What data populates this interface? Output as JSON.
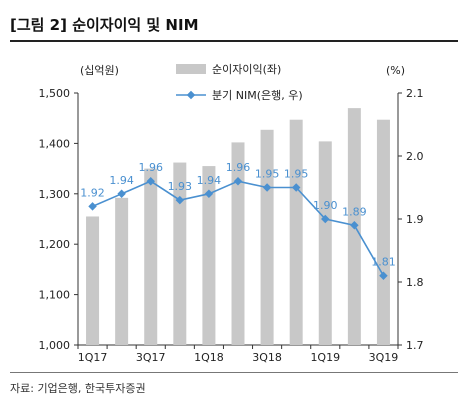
{
  "header": {
    "title": "[그림 2] 순이자이익 및 NIM"
  },
  "footer": {
    "source": "자료: 기업은행, 한국투자증권"
  },
  "chart_data": {
    "type": "bar+line",
    "left_axis_unit": "(십억원)",
    "right_axis_unit": "(%)",
    "categories": [
      "1Q17",
      "2Q17",
      "3Q17",
      "4Q17",
      "1Q18",
      "2Q18",
      "3Q18",
      "4Q18",
      "1Q19",
      "2Q19",
      "3Q19"
    ],
    "x_tick_labels": [
      "1Q17",
      "3Q17",
      "1Q18",
      "3Q18",
      "1Q19",
      "3Q19"
    ],
    "series": [
      {
        "name": "순이자이익(좌)",
        "type": "bar",
        "axis": "left",
        "color": "#c8c8c8",
        "values": [
          1255,
          1292,
          1350,
          1362,
          1355,
          1402,
          1427,
          1447,
          1404,
          1470,
          1447
        ]
      },
      {
        "name": "분기 NIM(은행, 우)",
        "type": "line",
        "axis": "right",
        "color": "#4a90d0",
        "values": [
          1.92,
          1.94,
          1.96,
          1.93,
          1.94,
          1.96,
          1.95,
          1.95,
          1.9,
          1.89,
          1.81
        ],
        "labels": [
          "1.92",
          "1.94",
          "1.96",
          "1.93",
          "1.94",
          "1.96",
          "1.95",
          "1.95",
          "1.90",
          "1.89",
          "1.81"
        ]
      }
    ],
    "left_ylim": [
      1000,
      1500
    ],
    "left_ticks": [
      "1,000",
      "1,100",
      "1,200",
      "1,300",
      "1,400",
      "1,500"
    ],
    "right_ylim": [
      1.7,
      2.1
    ],
    "right_ticks": [
      "1.7",
      "1.8",
      "1.9",
      "2.0",
      "2.1"
    ],
    "grid": false,
    "legend_position": "top"
  }
}
